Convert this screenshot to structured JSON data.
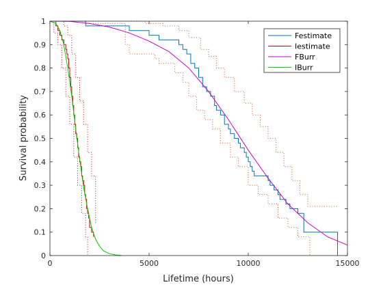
{
  "chart_data": {
    "type": "line",
    "xlabel": "Lifetime (hours)",
    "ylabel": "Survival probability",
    "xlim": [
      0,
      15000
    ],
    "ylim": [
      0,
      1
    ],
    "xticks": [
      0,
      5000,
      10000,
      15000
    ],
    "yticks": [
      0,
      0.1,
      0.2,
      0.3,
      0.4,
      0.5,
      0.6,
      0.7,
      0.8,
      0.9,
      1
    ],
    "xtick_labels": [
      "0",
      "5000",
      "10000",
      "15000"
    ],
    "ytick_labels": [
      "0",
      "0.1",
      "0.2",
      "0.3",
      "0.4",
      "0.5",
      "0.6",
      "0.7",
      "0.8",
      "0.9",
      "1"
    ],
    "grid": false,
    "legend_position": "top-right",
    "colors": {
      "festimate": "#0072bd",
      "iestimate": "#d95319",
      "iestimate_dark": "#cc0000",
      "fburr": "#cc00cc",
      "iburr": "#00cc00",
      "fbound": "#d95319",
      "ibound": "#cc0000"
    },
    "series": [
      {
        "name": "Festimate",
        "style": "stairs",
        "x": [
          0,
          1800,
          4000,
          5000,
          5500,
          6500,
          6700,
          6900,
          7100,
          7300,
          7500,
          7700,
          7900,
          8100,
          8300,
          8400,
          8600,
          8800,
          9000,
          9100,
          9300,
          9500,
          9600,
          9800,
          9900,
          10000,
          10100,
          10200,
          10300,
          10400,
          11000,
          11100,
          11300,
          11500,
          11600,
          11900,
          12100,
          12500,
          12800,
          14500,
          14500
        ],
        "y": [
          1,
          0.98,
          0.96,
          0.94,
          0.92,
          0.9,
          0.88,
          0.86,
          0.82,
          0.8,
          0.76,
          0.72,
          0.7,
          0.68,
          0.64,
          0.62,
          0.6,
          0.56,
          0.54,
          0.52,
          0.5,
          0.48,
          0.46,
          0.44,
          0.42,
          0.4,
          0.38,
          0.36,
          0.34,
          0.34,
          0.32,
          0.3,
          0.28,
          0.26,
          0.24,
          0.22,
          0.2,
          0.18,
          0.1,
          0.1,
          0
        ]
      },
      {
        "name": "Iestimate",
        "style": "stairs",
        "x": [
          0,
          300,
          400,
          500,
          600,
          700,
          800,
          850,
          900,
          950,
          1000,
          1050,
          1100,
          1150,
          1200,
          1250,
          1300,
          1350,
          1400,
          1450,
          1500,
          1550,
          1600,
          1650,
          1700,
          1750,
          1800,
          1850,
          1900,
          1950,
          2000,
          2100,
          2200,
          2200
        ],
        "y": [
          1,
          0.98,
          0.96,
          0.94,
          0.92,
          0.9,
          0.88,
          0.86,
          0.84,
          0.8,
          0.76,
          0.72,
          0.68,
          0.64,
          0.6,
          0.56,
          0.52,
          0.5,
          0.46,
          0.42,
          0.4,
          0.38,
          0.34,
          0.32,
          0.3,
          0.26,
          0.24,
          0.2,
          0.18,
          0.16,
          0.12,
          0.1,
          0.08,
          0.08
        ]
      },
      {
        "name": "FBurr",
        "style": "curve",
        "x": [
          0,
          1000,
          2000,
          3000,
          4000,
          5000,
          6000,
          7000,
          8000,
          9000,
          10000,
          11000,
          12000,
          13000,
          14000,
          15000
        ],
        "y": [
          1,
          0.999,
          0.99,
          0.975,
          0.95,
          0.915,
          0.87,
          0.8,
          0.7,
          0.58,
          0.45,
          0.33,
          0.22,
          0.14,
          0.08,
          0.045
        ]
      },
      {
        "name": "IBurr",
        "style": "curve",
        "x": [
          0,
          300,
          500,
          700,
          900,
          1100,
          1300,
          1500,
          1700,
          1900,
          2100,
          2300,
          2500,
          2700,
          3000,
          3300,
          3600
        ],
        "y": [
          1,
          0.99,
          0.96,
          0.9,
          0.8,
          0.68,
          0.54,
          0.41,
          0.29,
          0.2,
          0.12,
          0.07,
          0.04,
          0.02,
          0.008,
          0.003,
          0.001
        ]
      }
    ],
    "bounds": [
      {
        "of": "Festimate",
        "kind": "upper",
        "x": [
          0,
          1800,
          3700,
          4800,
          5700,
          6500,
          7000,
          7600,
          8000,
          8400,
          8800,
          9300,
          9800,
          10200,
          10600,
          11000,
          11400,
          11800,
          12200,
          12600,
          13000,
          14500
        ],
        "y": [
          1,
          1,
          1,
          0.99,
          0.98,
          0.96,
          0.93,
          0.88,
          0.85,
          0.8,
          0.76,
          0.7,
          0.65,
          0.6,
          0.55,
          0.5,
          0.44,
          0.38,
          0.32,
          0.26,
          0.21,
          0.21
        ]
      },
      {
        "of": "Festimate",
        "kind": "lower",
        "x": [
          0,
          1800,
          3800,
          4000,
          5300,
          5500,
          6300,
          6700,
          7000,
          7400,
          7800,
          8200,
          8600,
          9100,
          9500,
          10000,
          10500,
          11000,
          11500,
          12000,
          12500,
          13100,
          13100
        ],
        "y": [
          1,
          0.99,
          0.9,
          0.86,
          0.84,
          0.82,
          0.78,
          0.74,
          0.68,
          0.62,
          0.58,
          0.54,
          0.48,
          0.42,
          0.38,
          0.3,
          0.26,
          0.22,
          0.16,
          0.12,
          0.08,
          0.02,
          0
        ]
      },
      {
        "of": "Iestimate",
        "kind": "upper",
        "x": [
          0,
          500,
          700,
          900,
          1100,
          1300,
          1500,
          1700,
          1900,
          2100,
          2300,
          2300
        ],
        "y": [
          1,
          1,
          0.98,
          0.94,
          0.86,
          0.76,
          0.66,
          0.56,
          0.44,
          0.34,
          0.2,
          0.14
        ]
      },
      {
        "of": "Iestimate",
        "kind": "lower",
        "x": [
          0,
          200,
          400,
          600,
          800,
          1000,
          1200,
          1400,
          1600,
          1800,
          1900,
          1900
        ],
        "y": [
          1,
          0.95,
          0.9,
          0.8,
          0.68,
          0.56,
          0.42,
          0.3,
          0.18,
          0.08,
          0.02,
          0
        ]
      }
    ]
  }
}
